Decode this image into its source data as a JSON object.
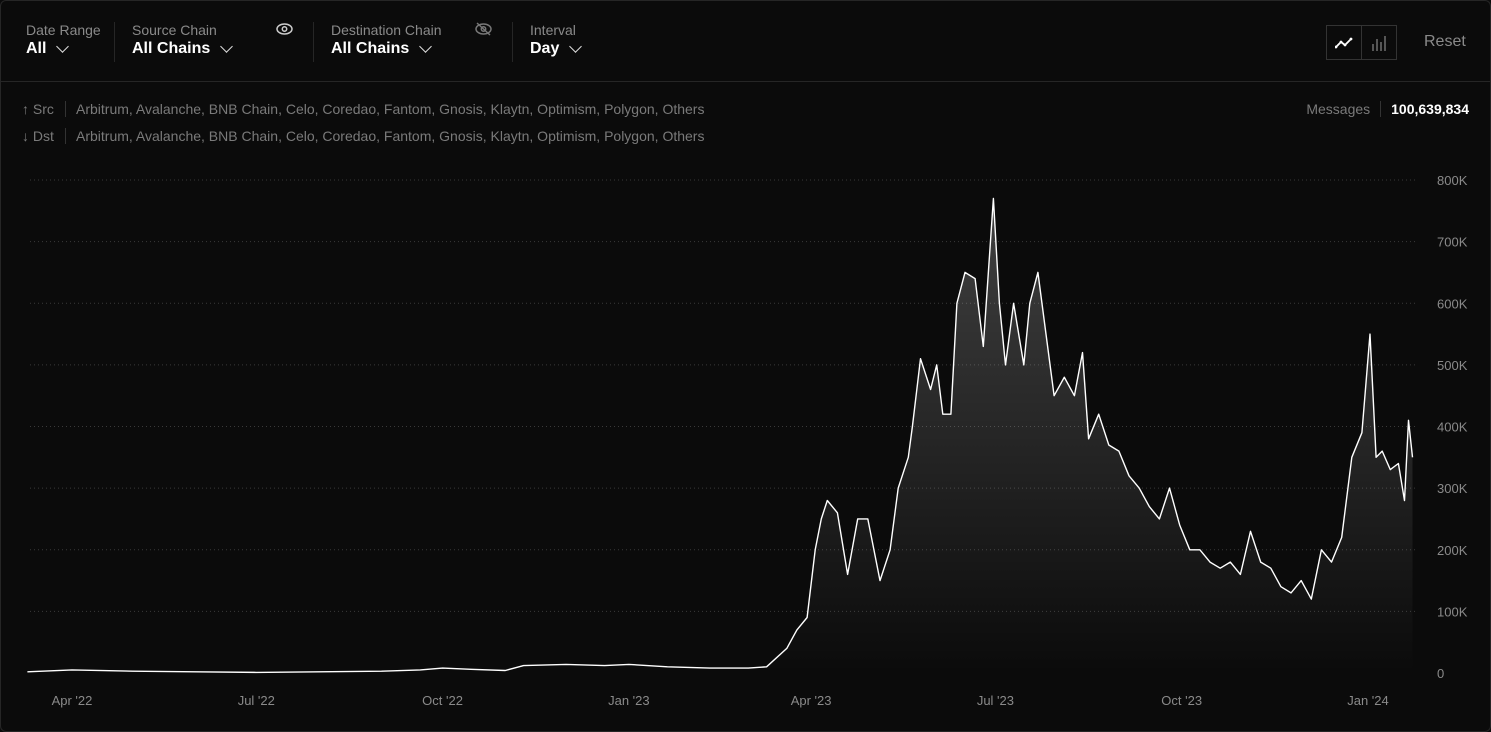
{
  "filters": {
    "date_range": {
      "label": "Date Range",
      "value": "All"
    },
    "source_chain": {
      "label": "Source Chain",
      "value": "All Chains",
      "visibility_icon": "eye-icon"
    },
    "destination_chain": {
      "label": "Destination Chain",
      "value": "All Chains",
      "visibility_icon": "eye-off-icon"
    },
    "interval": {
      "label": "Interval",
      "value": "Day"
    }
  },
  "view_toggle": {
    "options": [
      "line-chart-icon",
      "bar-chart-icon"
    ],
    "selected": "line-chart-icon"
  },
  "reset_label": "Reset",
  "src": {
    "label": "Src",
    "chains": "Arbitrum, Avalanche, BNB Chain, Celo, Coredao, Fantom, Gnosis, Klaytn, Optimism, Polygon, Others"
  },
  "dst": {
    "label": "Dst",
    "chains": "Arbitrum, Avalanche, BNB Chain, Celo, Coredao, Fantom, Gnosis, Klaytn, Optimism, Polygon, Others"
  },
  "messages": {
    "label": "Messages",
    "value": "100,639,834"
  },
  "colors": {
    "line": "#ffffff",
    "background": "#0b0b0b"
  },
  "chart_data": {
    "type": "area",
    "ylim": [
      0,
      800000
    ],
    "yticks": [
      0,
      100000,
      200000,
      300000,
      400000,
      500000,
      600000,
      700000,
      800000
    ],
    "ytick_labels": [
      "0",
      "100K",
      "200K",
      "300K",
      "400K",
      "500K",
      "600K",
      "700K",
      "800K"
    ],
    "xtick_dates": [
      "2022-04-01",
      "2022-07-01",
      "2022-10-01",
      "2023-01-01",
      "2023-04-01",
      "2023-07-01",
      "2023-10-01",
      "2024-01-01"
    ],
    "xtick_labels": [
      "Apr '22",
      "Jul '22",
      "Oct '22",
      "Jan '23",
      "Apr '23",
      "Jul '23",
      "Oct '23",
      "Jan '24"
    ],
    "grid": "horizontal-dotted",
    "points": [
      [
        "2022-03-10",
        2000
      ],
      [
        "2022-04-01",
        5000
      ],
      [
        "2022-05-01",
        3000
      ],
      [
        "2022-06-01",
        2000
      ],
      [
        "2022-07-01",
        1000
      ],
      [
        "2022-08-01",
        2000
      ],
      [
        "2022-09-01",
        3000
      ],
      [
        "2022-09-20",
        5000
      ],
      [
        "2022-10-01",
        8000
      ],
      [
        "2022-10-15",
        6000
      ],
      [
        "2022-11-01",
        4000
      ],
      [
        "2022-11-10",
        12000
      ],
      [
        "2022-12-01",
        14000
      ],
      [
        "2022-12-20",
        12000
      ],
      [
        "2023-01-01",
        14000
      ],
      [
        "2023-01-20",
        10000
      ],
      [
        "2023-02-10",
        8000
      ],
      [
        "2023-03-01",
        8000
      ],
      [
        "2023-03-10",
        10000
      ],
      [
        "2023-03-20",
        40000
      ],
      [
        "2023-03-25",
        70000
      ],
      [
        "2023-03-30",
        90000
      ],
      [
        "2023-04-03",
        200000
      ],
      [
        "2023-04-06",
        250000
      ],
      [
        "2023-04-09",
        280000
      ],
      [
        "2023-04-14",
        260000
      ],
      [
        "2023-04-19",
        160000
      ],
      [
        "2023-04-24",
        250000
      ],
      [
        "2023-04-29",
        250000
      ],
      [
        "2023-05-05",
        150000
      ],
      [
        "2023-05-10",
        200000
      ],
      [
        "2023-05-14",
        300000
      ],
      [
        "2023-05-19",
        350000
      ],
      [
        "2023-05-21",
        400000
      ],
      [
        "2023-05-25",
        510000
      ],
      [
        "2023-05-30",
        460000
      ],
      [
        "2023-06-02",
        500000
      ],
      [
        "2023-06-05",
        420000
      ],
      [
        "2023-06-09",
        420000
      ],
      [
        "2023-06-12",
        600000
      ],
      [
        "2023-06-16",
        650000
      ],
      [
        "2023-06-21",
        640000
      ],
      [
        "2023-06-25",
        530000
      ],
      [
        "2023-06-30",
        770000
      ],
      [
        "2023-07-03",
        600000
      ],
      [
        "2023-07-06",
        500000
      ],
      [
        "2023-07-10",
        600000
      ],
      [
        "2023-07-15",
        500000
      ],
      [
        "2023-07-18",
        600000
      ],
      [
        "2023-07-22",
        650000
      ],
      [
        "2023-07-26",
        550000
      ],
      [
        "2023-07-30",
        450000
      ],
      [
        "2023-08-04",
        480000
      ],
      [
        "2023-08-09",
        450000
      ],
      [
        "2023-08-13",
        520000
      ],
      [
        "2023-08-16",
        380000
      ],
      [
        "2023-08-21",
        420000
      ],
      [
        "2023-08-26",
        370000
      ],
      [
        "2023-08-31",
        360000
      ],
      [
        "2023-09-05",
        320000
      ],
      [
        "2023-09-10",
        300000
      ],
      [
        "2023-09-15",
        270000
      ],
      [
        "2023-09-20",
        250000
      ],
      [
        "2023-09-25",
        300000
      ],
      [
        "2023-09-30",
        240000
      ],
      [
        "2023-10-05",
        200000
      ],
      [
        "2023-10-10",
        200000
      ],
      [
        "2023-10-15",
        180000
      ],
      [
        "2023-10-20",
        170000
      ],
      [
        "2023-10-25",
        180000
      ],
      [
        "2023-10-30",
        160000
      ],
      [
        "2023-11-04",
        230000
      ],
      [
        "2023-11-09",
        180000
      ],
      [
        "2023-11-14",
        170000
      ],
      [
        "2023-11-19",
        140000
      ],
      [
        "2023-11-24",
        130000
      ],
      [
        "2023-11-29",
        150000
      ],
      [
        "2023-12-04",
        120000
      ],
      [
        "2023-12-09",
        200000
      ],
      [
        "2023-12-14",
        180000
      ],
      [
        "2023-12-19",
        220000
      ],
      [
        "2023-12-24",
        350000
      ],
      [
        "2023-12-29",
        390000
      ],
      [
        "2024-01-02",
        550000
      ],
      [
        "2024-01-05",
        350000
      ],
      [
        "2024-01-08",
        360000
      ],
      [
        "2024-01-12",
        330000
      ],
      [
        "2024-01-16",
        340000
      ],
      [
        "2024-01-19",
        280000
      ],
      [
        "2024-01-21",
        410000
      ],
      [
        "2024-01-23",
        350000
      ]
    ]
  }
}
